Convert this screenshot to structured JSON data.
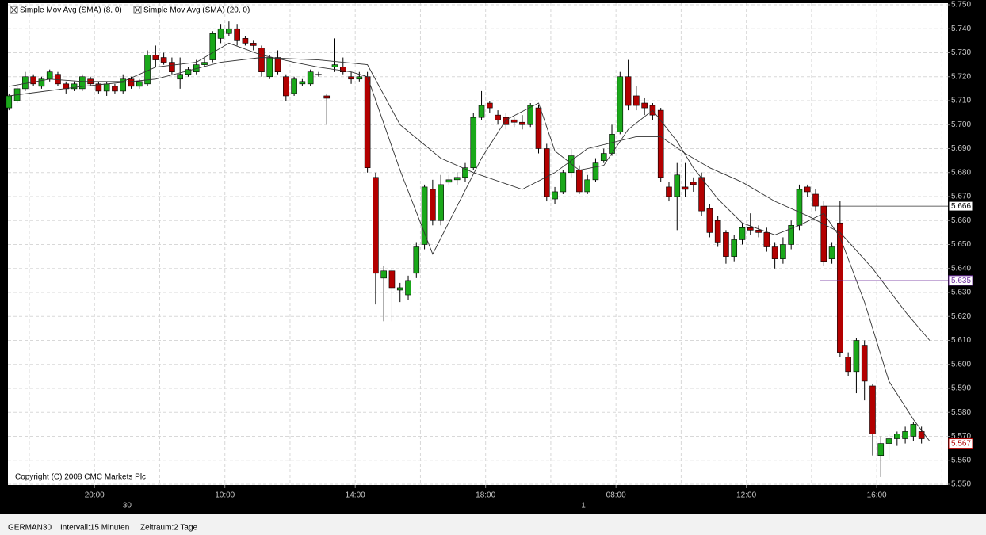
{
  "chart_data": {
    "type": "candlestick",
    "up_color": "#1aa81a",
    "down_color": "#b30000",
    "open": [
      5707,
      5710,
      5715,
      5720,
      5716,
      5719,
      5721,
      5717,
      5715,
      5715,
      5719,
      5717,
      5714,
      5716,
      5714,
      5719,
      5716,
      5717,
      5729,
      5728,
      5726,
      5719,
      5721,
      5722,
      5725,
      5727,
      5736,
      5738,
      5740,
      5736,
      5734,
      5732,
      5720,
      5728,
      5720,
      5713,
      5717,
      5717,
      5721,
      5712,
      5724,
      5724,
      5720,
      5719,
      5720,
      5678,
      5636,
      5639,
      5631,
      5629,
      5638,
      5650,
      5673,
      5660,
      5676,
      5677,
      5678,
      5682,
      5703,
      5709,
      5704,
      5703,
      5702,
      5701,
      5700,
      5707,
      5690,
      5669,
      5672,
      5680,
      5681,
      5672,
      5677,
      5685,
      5688,
      5697,
      5720,
      5712,
      5709,
      5708,
      5706,
      5674,
      5670,
      5674,
      5676,
      5678,
      5665,
      5660,
      5655,
      5645,
      5652,
      5657,
      5656,
      5655,
      5649,
      5644,
      5650,
      5658,
      5674,
      5671,
      5666,
      5644,
      5659,
      5603,
      5597,
      5608,
      5591,
      5562,
      5567,
      5569,
      5569,
      5570,
      5572
    ],
    "high": [
      5713,
      5716,
      5722,
      5721,
      5720,
      5723,
      5722,
      5718,
      5718,
      5721,
      5720,
      5718,
      5718,
      5717,
      5721,
      5720,
      5719,
      5731,
      5733,
      5730,
      5728,
      5728,
      5724,
      5727,
      5728,
      5739,
      5742,
      5743,
      5742,
      5737,
      5735,
      5733,
      5729,
      5731,
      5721,
      5720,
      5719,
      5723,
      5722,
      5713,
      5736,
      5728,
      5722,
      5722,
      5722,
      5680,
      5641,
      5640,
      5634,
      5637,
      5651,
      5675,
      5677,
      5679,
      5679,
      5680,
      5684,
      5705,
      5714,
      5710,
      5706,
      5705,
      5703,
      5704,
      5709,
      5708,
      5692,
      5674,
      5681,
      5690,
      5683,
      5679,
      5686,
      5690,
      5700,
      5722,
      5727,
      5716,
      5711,
      5709,
      5707,
      5676,
      5684,
      5684,
      5678,
      5680,
      5667,
      5662,
      5656,
      5654,
      5659,
      5663,
      5658,
      5657,
      5651,
      5653,
      5660,
      5675,
      5675,
      5673,
      5668,
      5651,
      5668,
      5605,
      5611,
      5610,
      5592,
      5570,
      5571,
      5572,
      5574,
      5576,
      5574
    ],
    "low": [
      5706,
      5709,
      5714,
      5716,
      5715,
      5718,
      5716,
      5713,
      5714,
      5714,
      5716,
      5713,
      5712,
      5713,
      5713,
      5715,
      5715,
      5716,
      5724,
      5725,
      5721,
      5715,
      5720,
      5721,
      5724,
      5726,
      5734,
      5737,
      5733,
      5733,
      5731,
      5720,
      5719,
      5721,
      5710,
      5712,
      5716,
      5716,
      5720,
      5700,
      5722,
      5721,
      5717,
      5718,
      5680,
      5625,
      5618,
      5618,
      5626,
      5627,
      5636,
      5648,
      5658,
      5658,
      5675,
      5675,
      5676,
      5681,
      5702,
      5705,
      5700,
      5698,
      5699,
      5698,
      5699,
      5688,
      5668,
      5667,
      5671,
      5678,
      5671,
      5671,
      5676,
      5684,
      5687,
      5696,
      5706,
      5706,
      5704,
      5702,
      5676,
      5668,
      5656,
      5670,
      5672,
      5662,
      5653,
      5649,
      5642,
      5643,
      5650,
      5654,
      5653,
      5647,
      5640,
      5642,
      5648,
      5656,
      5670,
      5664,
      5641,
      5642,
      5603,
      5595,
      5588,
      5585,
      5562,
      5553,
      5560,
      5566,
      5567,
      5568,
      5567
    ],
    "close": [
      5712,
      5715,
      5720,
      5717,
      5719,
      5722,
      5717,
      5715,
      5717,
      5720,
      5717,
      5714,
      5717,
      5714,
      5719,
      5716,
      5718,
      5729,
      5727,
      5726,
      5722,
      5721,
      5723,
      5725,
      5726,
      5738,
      5740,
      5740,
      5735,
      5734,
      5733,
      5722,
      5728,
      5722,
      5712,
      5719,
      5718,
      5722,
      5721,
      5711,
      5725,
      5722,
      5719,
      5720,
      5682,
      5638,
      5639,
      5632,
      5632,
      5635,
      5649,
      5674,
      5660,
      5675,
      5677,
      5678,
      5682,
      5703,
      5708,
      5707,
      5702,
      5700,
      5701,
      5700,
      5708,
      5690,
      5670,
      5672,
      5680,
      5687,
      5672,
      5677,
      5684,
      5688,
      5696,
      5720,
      5708,
      5708,
      5707,
      5704,
      5678,
      5670,
      5679,
      5673,
      5675,
      5664,
      5655,
      5651,
      5645,
      5652,
      5657,
      5656,
      5655,
      5649,
      5644,
      5650,
      5658,
      5673,
      5672,
      5666,
      5643,
      5649,
      5605,
      5597,
      5610,
      5593,
      5571,
      5567,
      5569,
      5571,
      5572,
      5575,
      5569
    ],
    "series": [
      {
        "name": "Simple Mov Avg (SMA) (8, 0)",
        "color": "#333333",
        "x": [
          0,
          5,
          9,
          14,
          18,
          23,
          27,
          31,
          35,
          38,
          42,
          44,
          48,
          52,
          58,
          61,
          65,
          67,
          70,
          73,
          76,
          79,
          82,
          84,
          87,
          90,
          94,
          97,
          100,
          102,
          105,
          108,
          111,
          113
        ],
        "values": [
          5716,
          5719,
          5718,
          5718,
          5724,
          5726,
          5734,
          5729,
          5726,
          5724,
          5722,
          5720,
          5681,
          5646,
          5686,
          5702,
          5709,
          5689,
          5681,
          5683,
          5698,
          5706,
          5693,
          5682,
          5669,
          5659,
          5654,
          5658,
          5663,
          5653,
          5626,
          5593,
          5577,
          5568
        ]
      },
      {
        "name": "Simple Mov Avg (SMA) (20, 0)",
        "color": "#333333",
        "x": [
          0,
          9,
          18,
          26,
          31,
          38,
          44,
          48,
          53,
          57,
          63,
          67,
          71,
          77,
          80,
          83,
          86,
          90,
          94,
          98,
          102,
          106,
          110,
          113
        ],
        "values": [
          5712,
          5716,
          5719,
          5726,
          5728,
          5727,
          5725,
          5700,
          5686,
          5680,
          5673,
          5680,
          5690,
          5695,
          5695,
          5688,
          5682,
          5676,
          5668,
          5662,
          5655,
          5640,
          5622,
          5610
        ]
      }
    ],
    "ylim": [
      5550,
      5750
    ],
    "yticks": [
      {
        "value": 5550,
        "label": "5.550"
      },
      {
        "value": 5560,
        "label": "5.560"
      },
      {
        "value": 5570,
        "label": "5.570"
      },
      {
        "value": 5580,
        "label": "5.580"
      },
      {
        "value": 5590,
        "label": "5.590"
      },
      {
        "value": 5600,
        "label": "5.600"
      },
      {
        "value": 5610,
        "label": "5.610"
      },
      {
        "value": 5620,
        "label": "5.620"
      },
      {
        "value": 5630,
        "label": "5.630"
      },
      {
        "value": 5640,
        "label": "5.640"
      },
      {
        "value": 5650,
        "label": "5.650"
      },
      {
        "value": 5660,
        "label": "5.660"
      },
      {
        "value": 5670,
        "label": "5.670"
      },
      {
        "value": 5680,
        "label": "5.680"
      },
      {
        "value": 5690,
        "label": "5.690"
      },
      {
        "value": 5700,
        "label": "5.700"
      },
      {
        "value": 5710,
        "label": "5.710"
      },
      {
        "value": 5720,
        "label": "5.720"
      },
      {
        "value": 5730,
        "label": "5.730"
      },
      {
        "value": 5740,
        "label": "5.740"
      },
      {
        "value": 5750,
        "label": "5.750"
      }
    ],
    "xticks": [
      {
        "value": 10.5,
        "label": "20:00"
      },
      {
        "value": 26.5,
        "label": "10:00"
      },
      {
        "value": 42.5,
        "label": "14:00"
      },
      {
        "value": 58.5,
        "label": "18:00"
      },
      {
        "value": 74.5,
        "label": "08:00"
      },
      {
        "value": 90.5,
        "label": "12:00"
      },
      {
        "value": 106.5,
        "label": "16:00"
      }
    ],
    "xgrid": [
      2.5,
      18.5,
      34.5,
      50.5,
      66.5,
      82.5,
      98.5,
      114.5
    ],
    "date_ticks": [
      {
        "value": 14.5,
        "label": "30"
      },
      {
        "value": 70.5,
        "label": "1"
      }
    ],
    "price_lines": [
      {
        "value": 5666,
        "label": "5.666",
        "color": "#000000",
        "from": 100
      },
      {
        "value": 5635,
        "label": "5.635",
        "color": "#7030a0",
        "from": 99.5
      },
      {
        "value": 5567,
        "label": "5.567",
        "color": "#b30000"
      }
    ],
    "grid": true,
    "copyright": "Copyright (C) 2008 CMC Markets Plc",
    "footer": {
      "symbol": "GERMAN30",
      "interval": "Intervall:15 Minuten",
      "period": "Zeitraum:2 Tage"
    }
  }
}
